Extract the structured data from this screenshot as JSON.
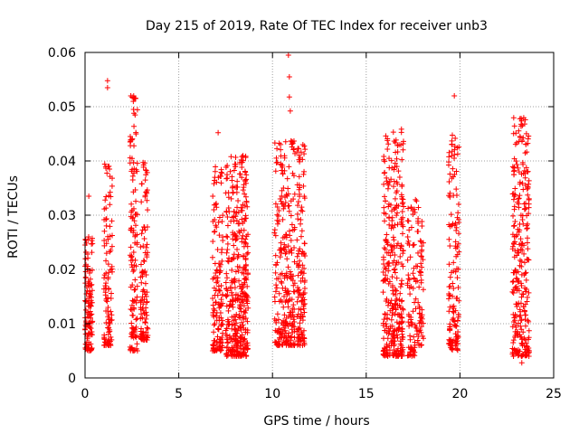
{
  "chart_data": {
    "type": "scatter",
    "title": "Day 215 of 2019, Rate Of TEC Index for receiver unb3",
    "xlabel": "GPS time / hours",
    "ylabel": "ROTI / TECUs",
    "xlim": [
      0,
      25
    ],
    "ylim": [
      0,
      0.06
    ],
    "x_ticks": [
      0,
      5,
      10,
      15,
      20,
      25
    ],
    "y_ticks": [
      0,
      0.01,
      0.02,
      0.03,
      0.04,
      0.05,
      0.06
    ],
    "x_tick_labels": [
      "0",
      "5",
      "10",
      "15",
      "20",
      "25"
    ],
    "y_tick_labels": [
      "0",
      "0.01",
      "0.02",
      "0.03",
      "0.04",
      "0.05",
      "0.06"
    ],
    "grid": true,
    "marker": "+",
    "marker_color": "#ff0000",
    "clusters": [
      {
        "x_start": 0.0,
        "x_end": 0.4,
        "y_min": 0.005,
        "y_max": 0.026,
        "count": 120,
        "outliers": [
          [
            0.2,
            0.0335
          ]
        ]
      },
      {
        "x_start": 1.0,
        "x_end": 1.45,
        "y_min": 0.006,
        "y_max": 0.04,
        "count": 110,
        "outliers": [
          [
            1.2,
            0.0548
          ],
          [
            1.2,
            0.0535
          ]
        ]
      },
      {
        "x_start": 2.4,
        "x_end": 2.8,
        "y_min": 0.005,
        "y_max": 0.052,
        "count": 130,
        "outliers": []
      },
      {
        "x_start": 2.95,
        "x_end": 3.35,
        "y_min": 0.007,
        "y_max": 0.04,
        "count": 110,
        "outliers": []
      },
      {
        "x_start": 6.8,
        "x_end": 7.35,
        "y_min": 0.005,
        "y_max": 0.039,
        "count": 140,
        "outliers": [
          [
            7.1,
            0.0452
          ]
        ]
      },
      {
        "x_start": 7.5,
        "x_end": 8.7,
        "y_min": 0.004,
        "y_max": 0.041,
        "count": 380,
        "outliers": []
      },
      {
        "x_start": 10.1,
        "x_end": 11.2,
        "y_min": 0.006,
        "y_max": 0.044,
        "count": 260,
        "outliers": [
          [
            10.85,
            0.0595
          ],
          [
            10.9,
            0.0555
          ],
          [
            10.9,
            0.0518
          ],
          [
            10.95,
            0.0492
          ]
        ]
      },
      {
        "x_start": 11.3,
        "x_end": 11.75,
        "y_min": 0.006,
        "y_max": 0.043,
        "count": 130,
        "outliers": []
      },
      {
        "x_start": 15.9,
        "x_end": 17.0,
        "y_min": 0.004,
        "y_max": 0.046,
        "count": 330,
        "outliers": []
      },
      {
        "x_start": 17.2,
        "x_end": 17.6,
        "y_min": 0.004,
        "y_max": 0.032,
        "count": 70,
        "outliers": []
      },
      {
        "x_start": 17.6,
        "x_end": 18.05,
        "y_min": 0.006,
        "y_max": 0.033,
        "count": 70,
        "outliers": []
      },
      {
        "x_start": 19.4,
        "x_end": 19.95,
        "y_min": 0.005,
        "y_max": 0.045,
        "count": 140,
        "outliers": [
          [
            19.7,
            0.052
          ]
        ]
      },
      {
        "x_start": 22.8,
        "x_end": 23.7,
        "y_min": 0.004,
        "y_max": 0.048,
        "count": 280,
        "outliers": [
          [
            23.3,
            0.0028
          ]
        ]
      }
    ]
  }
}
